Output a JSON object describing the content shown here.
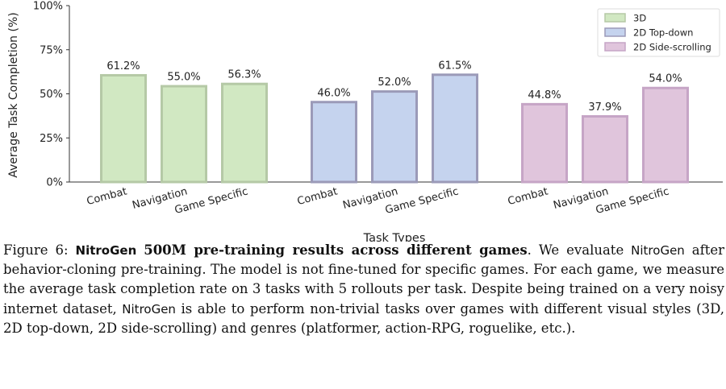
{
  "chart_data": {
    "type": "bar",
    "title": "",
    "xlabel": "Task Types",
    "ylabel": "Average Task Completion (%)",
    "ylim": [
      0,
      100
    ],
    "yticks": [
      {
        "value": 0,
        "label": "0%"
      },
      {
        "value": 25,
        "label": "25%"
      },
      {
        "value": 50,
        "label": "50%"
      },
      {
        "value": 75,
        "label": "75%"
      },
      {
        "value": 100,
        "label": "100%"
      }
    ],
    "grid": false,
    "legend_position": "top-right",
    "series": [
      {
        "name": "3D",
        "fill": "#d1e8c2",
        "stroke": "#b5c9a6",
        "categories": [
          "Combat",
          "Navigation",
          "Game Specific"
        ],
        "values": [
          61.2,
          55.0,
          56.3
        ],
        "value_labels": [
          "61.2%",
          "55.0%",
          "56.3%"
        ]
      },
      {
        "name": "2D Top-down",
        "fill": "#c5d3ee",
        "stroke": "#9b9ab8",
        "categories": [
          "Combat",
          "Navigation",
          "Game Specific"
        ],
        "values": [
          46.0,
          52.0,
          61.5
        ],
        "value_labels": [
          "46.0%",
          "52.0%",
          "61.5%"
        ]
      },
      {
        "name": "2D Side-scrolling",
        "fill": "#e0c5dc",
        "stroke": "#c6a5c6",
        "categories": [
          "Combat",
          "Navigation",
          "Game Specific"
        ],
        "values": [
          44.8,
          37.9,
          54.0
        ],
        "value_labels": [
          "44.8%",
          "37.9%",
          "54.0%"
        ]
      }
    ]
  },
  "caption": {
    "figure_label": "Figure 6:",
    "bold_title_model": "NitroGen",
    "bold_title_rest": "500M pre-training results across different games",
    "text_1": ". We evaluate ",
    "model_name_1": "NitroGen",
    "text_2": " after behavior-cloning pre-training. The model is not fine-tuned for specific games. For each game, we measure the average task completion rate on 3 tasks with 5 rollouts per task. Despite being trained on a very noisy internet dataset, ",
    "model_name_2": "NitroGen",
    "text_3": " is able to perform non-trivial tasks over games with different visual styles (3D, 2D top-down, 2D side-scrolling) and genres (platformer, action-RPG, roguelike, etc.)."
  }
}
